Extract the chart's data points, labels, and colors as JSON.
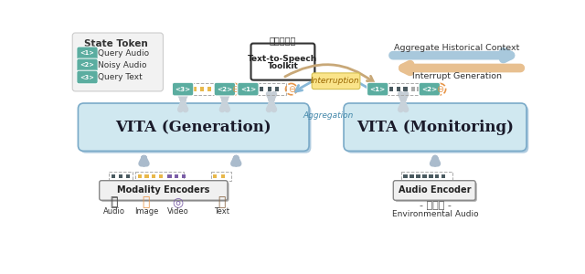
{
  "bg_color": "#ffffff",
  "teal_color": "#5BADA0",
  "yellow_color": "#E8B84B",
  "orange_color": "#E8964A",
  "purple_color": "#7B5EA7",
  "gray_dark": "#4A5A60",
  "blue_light": "#D0E8F0",
  "blue_border": "#90B8D0",
  "blue_arrow": "#A8C8DC",
  "orange_arrow": "#E8C090",
  "tan_arrow": "#C8A878",
  "vita_gen_label": "VITA (Generation)",
  "vita_mon_label": "VITA (Monitoring)",
  "modality_label": "Modality Encoders",
  "audio_enc_label": "Audio Encoder",
  "interruption_label": "Interruption",
  "aggregation_label": "Aggregation",
  "agg_hist_label": "Aggregate Historical Context",
  "interrupt_gen_label": "Interrupt Generation",
  "env_audio_label": "Environmental Audio",
  "state_token_label": "State Token",
  "token_labels": [
    "<1>",
    "<2>",
    "<3>"
  ],
  "token_descs": [
    "Query Audio",
    "Noisy Audio",
    "Query Text"
  ],
  "modality_icons": [
    "Audio",
    "Image",
    "Video",
    "Text"
  ]
}
